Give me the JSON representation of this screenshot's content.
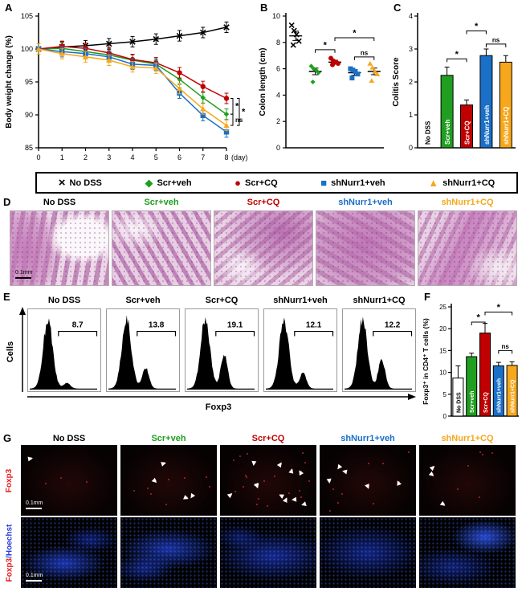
{
  "groups": [
    {
      "name": "No DSS",
      "color": "#000000",
      "marker": "x",
      "glyph": "×"
    },
    {
      "name": "Scr+veh",
      "color": "#1f9e1f",
      "marker": "diamond",
      "glyph": "◆"
    },
    {
      "name": "Scr+CQ",
      "color": "#c00000",
      "marker": "circle",
      "glyph": "●"
    },
    {
      "name": "shNurr1+veh",
      "color": "#1a6fc7",
      "marker": "square",
      "glyph": "■"
    },
    {
      "name": "shNurr1+CQ",
      "color": "#f6a71b",
      "marker": "triangle",
      "glyph": "▲"
    }
  ],
  "legend": {
    "items": [
      "No DSS",
      "Scr+veh",
      "Scr+CQ",
      "shNurr1+veh",
      "shNurr1+CQ"
    ]
  },
  "chart_data": [
    {
      "letter": "A",
      "type": "line",
      "ylabel": "Body weight change (%)",
      "xlabel": "(day)",
      "x": [
        0,
        1,
        2,
        3,
        4,
        5,
        6,
        7,
        8
      ],
      "ylim": [
        85,
        105
      ],
      "yticks": [
        85,
        90,
        95,
        100,
        105
      ],
      "error": 0.8,
      "series": [
        {
          "name": "No DSS",
          "values": [
            100,
            100.3,
            100.5,
            100.8,
            101.1,
            101.5,
            102,
            102.5,
            103.3
          ]
        },
        {
          "name": "Scr+veh",
          "values": [
            100,
            100.1,
            99.6,
            99.1,
            98.3,
            97.7,
            95.4,
            92.6,
            90.1
          ]
        },
        {
          "name": "Scr+CQ",
          "values": [
            100,
            100.4,
            100.1,
            99.4,
            98.4,
            97.9,
            96.4,
            94.3,
            92.5
          ]
        },
        {
          "name": "shNurr1+veh",
          "values": [
            100,
            99.6,
            99.3,
            98.8,
            97.7,
            97.5,
            93.3,
            89.9,
            87.4
          ]
        },
        {
          "name": "shNurr1+CQ",
          "values": [
            100,
            99.3,
            98.8,
            98.3,
            97.3,
            97.1,
            94,
            90.9,
            88.4
          ]
        }
      ],
      "brackets": [
        {
          "a": 2,
          "b": 1,
          "label": "*",
          "dx": 8
        },
        {
          "a": 2,
          "b": 4,
          "label": "*",
          "dx": 16
        },
        {
          "a": 1,
          "b": 4,
          "label": "ns",
          "dx": 8
        }
      ]
    },
    {
      "letter": "B",
      "type": "scatter",
      "ylabel": "Colon length (cm)",
      "ylim": [
        0,
        10
      ],
      "yticks": [
        0,
        2,
        4,
        6,
        8,
        10
      ],
      "groups": [
        {
          "name": "No DSS",
          "mean": 8.5,
          "sem": 0.35,
          "points": [
            9.3,
            8.9,
            8.6,
            8.1,
            7.8
          ]
        },
        {
          "name": "Scr+veh",
          "mean": 5.8,
          "sem": 0.25,
          "points": [
            6.2,
            6.0,
            5.9,
            5.7,
            5.0
          ]
        },
        {
          "name": "Scr+CQ",
          "mean": 6.5,
          "sem": 0.15,
          "points": [
            6.8,
            6.6,
            6.5,
            6.4,
            6.3
          ]
        },
        {
          "name": "shNurr1+veh",
          "mean": 5.7,
          "sem": 0.2,
          "points": [
            6.0,
            5.9,
            5.8,
            5.6,
            5.3
          ]
        },
        {
          "name": "shNurr1+CQ",
          "mean": 5.8,
          "sem": 0.25,
          "points": [
            6.4,
            6.1,
            5.8,
            5.6,
            5.1
          ]
        }
      ],
      "brackets": [
        {
          "a": 1,
          "b": 2,
          "label": "*",
          "v": 7.45
        },
        {
          "a": 2,
          "b": 4,
          "label": "*",
          "v": 8.35
        },
        {
          "a": 3,
          "b": 4,
          "label": "ns",
          "v": 6.9
        }
      ]
    },
    {
      "letter": "C",
      "type": "bar",
      "ylabel": "Colitis Score",
      "ylim": [
        0,
        4
      ],
      "yticks": [
        0,
        1,
        2,
        3,
        4
      ],
      "categories": [
        "No DSS",
        "Scr+veh",
        "Scr+CQ",
        "shNurr1+veh",
        "shNurr1+CQ"
      ],
      "values": [
        0,
        2.2,
        1.3,
        2.8,
        2.6
      ],
      "errors": [
        0,
        0.25,
        0.15,
        0.2,
        0.2
      ],
      "brackets": [
        {
          "a": 1,
          "b": 2,
          "label": "*",
          "v": 2.7
        },
        {
          "a": 2,
          "b": 3,
          "label": "*",
          "v": 3.55
        },
        {
          "a": 3,
          "b": 4,
          "label": "ns",
          "v": 3.15
        }
      ]
    },
    {
      "letter": "E",
      "type": "flow-histogram",
      "xlabel": "Foxp3",
      "ylabel": "Cells",
      "panels": [
        {
          "name": "No DSS",
          "percent": "8.7"
        },
        {
          "name": "Scr+veh",
          "percent": "13.8"
        },
        {
          "name": "Scr+CQ",
          "percent": "19.1"
        },
        {
          "name": "shNurr1+veh",
          "percent": "12.1"
        },
        {
          "name": "shNurr1+CQ",
          "percent": "12.2"
        }
      ]
    },
    {
      "letter": "F",
      "type": "bar",
      "ylabel": "Foxp3⁺ in CD4⁺ T cells (%)",
      "ylim": [
        0,
        25
      ],
      "yticks": [
        0,
        5,
        10,
        15,
        20,
        25
      ],
      "categories": [
        "No DSS",
        "Scr+veh",
        "Scr+CQ",
        "shNurr1+veh",
        "shNurr1+CQ"
      ],
      "values": [
        8.7,
        13.6,
        19,
        11.5,
        11.6
      ],
      "errors": [
        2.8,
        0.8,
        2.2,
        0.8,
        0.8
      ],
      "brackets": [
        {
          "a": 1,
          "b": 2,
          "label": "*",
          "v": 21.5
        },
        {
          "a": 2,
          "b": 4,
          "label": "*",
          "v": 23.8
        },
        {
          "a": 3,
          "b": 4,
          "label": "ns",
          "v": 15
        }
      ]
    }
  ],
  "panel_d": {
    "letter": "D",
    "columns": [
      "No DSS",
      "Scr+veh",
      "Scr+CQ",
      "shNurr1+veh",
      "shNurr1+CQ"
    ],
    "scale_bar": "0.1mm"
  },
  "panel_g": {
    "letter": "G",
    "columns": [
      "No DSS",
      "Scr+veh",
      "Scr+CQ",
      "shNurr1+veh",
      "shNurr1+CQ"
    ],
    "row1_label": "Foxp3",
    "row2_label_left": "Foxp3",
    "row2_label_right": "/Hoechst",
    "scale_bar": "0.1mm",
    "arrowheads": [
      1,
      4,
      11,
      5,
      3
    ],
    "colors": {
      "foxp3_label": "#e81c1c",
      "hoechst_label": "#2a3cd8"
    }
  }
}
